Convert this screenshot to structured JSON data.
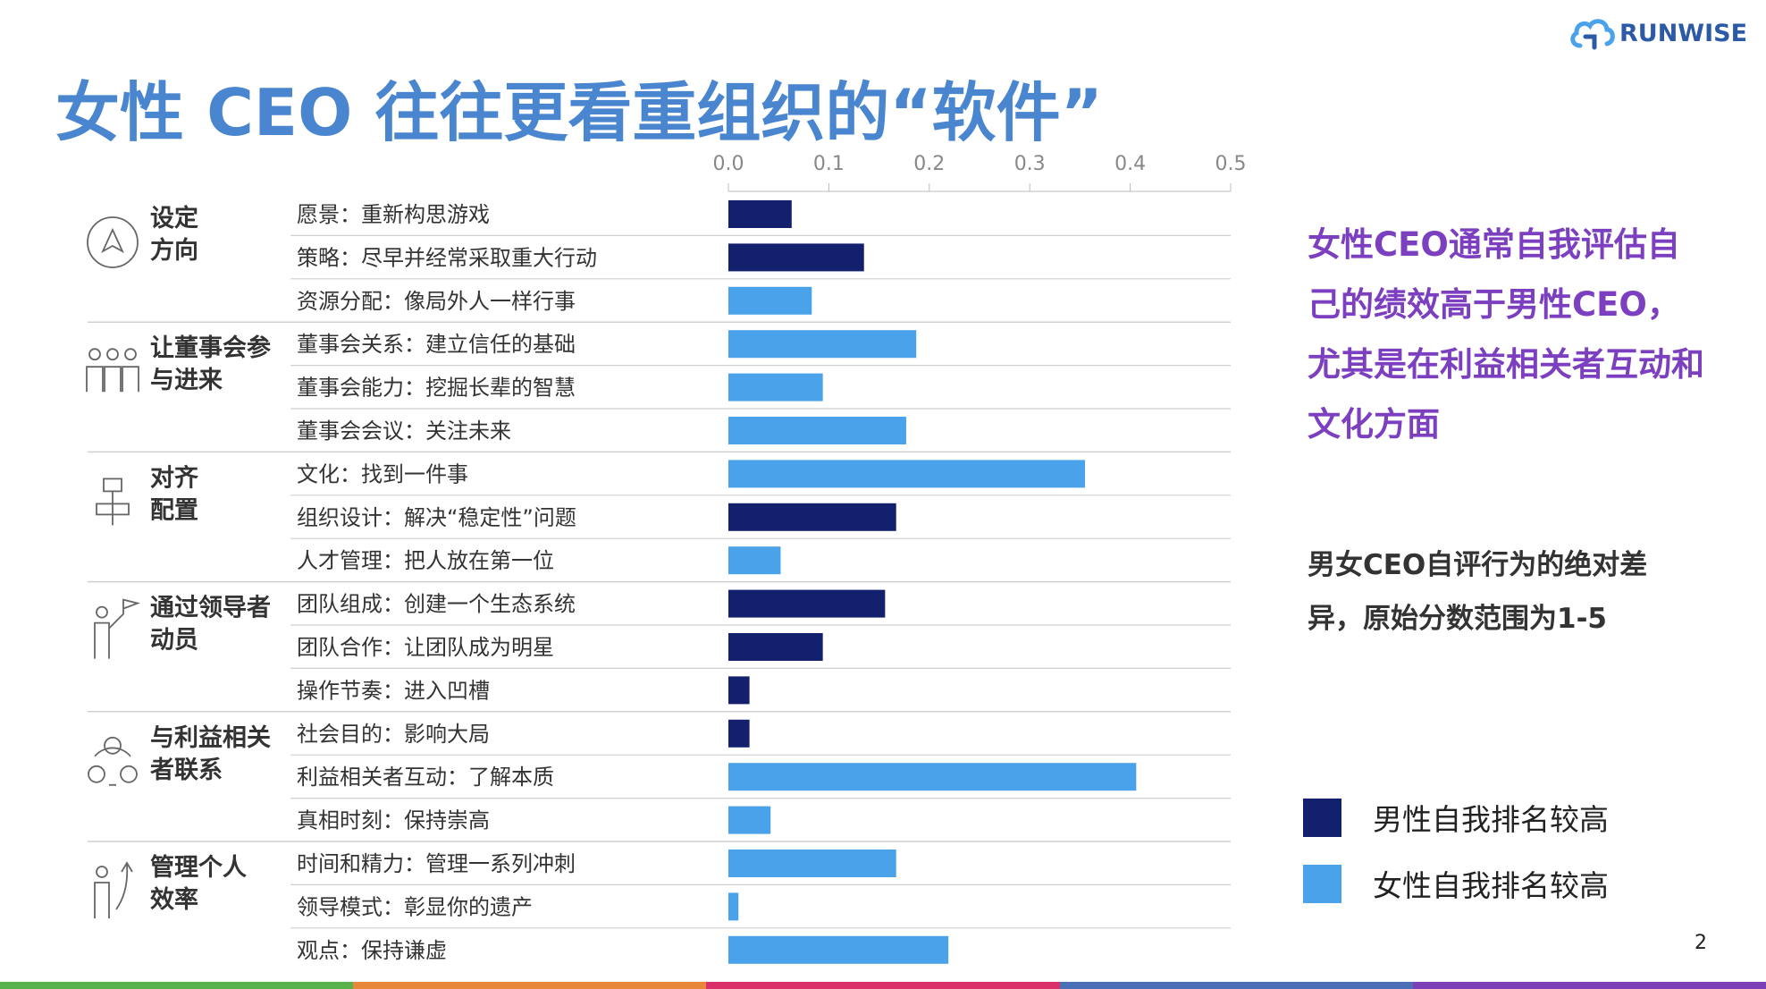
{
  "brand": {
    "name": "RUNWISE",
    "logo_icon": "cloud-logo-icon",
    "color": "#2c5aa7"
  },
  "slide": {
    "title": "女性 CEO 往往更看重组织的“软件”",
    "page_number": "2"
  },
  "side_text": {
    "highlight": "女性CEO通常自我评估自己的绩效高于男性CEO，尤其是在利益相关者互动和文化方面",
    "note": "男女CEO自评行为的绝对差异，原始分数范围为1-5"
  },
  "legend": [
    {
      "label": "男性自我排名较高",
      "color": "#13206e"
    },
    {
      "label": "女性自我排名较高",
      "color": "#4aa3ea"
    }
  ],
  "colors": {
    "male": "#13206e",
    "female": "#4aa3ea",
    "title": "#4a86cf",
    "highlight": "#7b3fc0"
  },
  "bottom_stripe_colors": [
    "#58b24c",
    "#e8873a",
    "#d9306a",
    "#4a6fb6",
    "#7d3fb8"
  ],
  "chart_data": {
    "type": "bar",
    "orientation": "horizontal",
    "xlim": [
      0,
      0.5
    ],
    "x_ticks": [
      "0.0",
      "0.1",
      "0.2",
      "0.3",
      "0.4",
      "0.5"
    ],
    "grid": false,
    "groups": [
      {
        "label_lines": [
          "设定",
          "方向"
        ],
        "icon": "compass-triangle-icon",
        "rows": [
          {
            "label": "愿景：重新构思游戏",
            "value": 0.063,
            "series": "male"
          },
          {
            "label": "策略：尽早并经常采取重大行动",
            "value": 0.135,
            "series": "male"
          },
          {
            "label": "资源分配：像局外人一样行事",
            "value": 0.083,
            "series": "female"
          }
        ]
      },
      {
        "label_lines": [
          "让董事会参",
          "与进来"
        ],
        "icon": "board-members-icon",
        "rows": [
          {
            "label": "董事会关系：建立信任的基础",
            "value": 0.187,
            "series": "female"
          },
          {
            "label": "董事会能力：挖掘长辈的智慧",
            "value": 0.094,
            "series": "female"
          },
          {
            "label": "董事会会议：关注未来",
            "value": 0.177,
            "series": "female"
          }
        ]
      },
      {
        "label_lines": [
          "对齐",
          "配置"
        ],
        "icon": "org-chart-icon",
        "rows": [
          {
            "label": "文化：找到一件事",
            "value": 0.355,
            "series": "female"
          },
          {
            "label": "组织设计：解决“稳定性”问题",
            "value": 0.167,
            "series": "male"
          },
          {
            "label": "人才管理：把人放在第一位",
            "value": 0.052,
            "series": "female"
          }
        ]
      },
      {
        "label_lines": [
          "通过领导者",
          "动员"
        ],
        "icon": "leader-flag-icon",
        "rows": [
          {
            "label": "团队组成：创建一个生态系统",
            "value": 0.156,
            "series": "male"
          },
          {
            "label": "团队合作：让团队成为明星",
            "value": 0.094,
            "series": "male"
          },
          {
            "label": "操作节奏：进入凹槽",
            "value": 0.021,
            "series": "male"
          }
        ]
      },
      {
        "label_lines": [
          "与利益相关",
          "者联系"
        ],
        "icon": "stakeholder-network-icon",
        "rows": [
          {
            "label": "社会目的：影响大局",
            "value": 0.021,
            "series": "male"
          },
          {
            "label": "利益相关者互动：了解本质",
            "value": 0.406,
            "series": "female"
          },
          {
            "label": "真相时刻：保持崇高",
            "value": 0.042,
            "series": "female"
          }
        ]
      },
      {
        "label_lines": [
          "管理个人",
          "效率"
        ],
        "icon": "person-growth-icon",
        "rows": [
          {
            "label": "时间和精力：管理一系列冲刺",
            "value": 0.167,
            "series": "female"
          },
          {
            "label": "领导模式：彰显你的遗产",
            "value": 0.01,
            "series": "female"
          },
          {
            "label": "观点：保持谦虚",
            "value": 0.219,
            "series": "female"
          }
        ]
      }
    ]
  }
}
